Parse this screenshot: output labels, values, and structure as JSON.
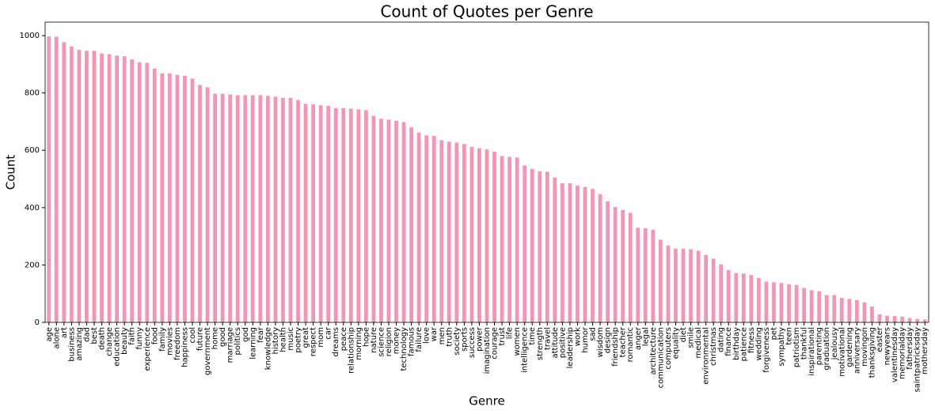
{
  "chart_data": {
    "type": "bar",
    "title": "Count of Quotes per Genre",
    "x_label": "Genre",
    "y_label": "Count",
    "categories": [
      "age",
      "alone",
      "art",
      "business",
      "amazing",
      "dad",
      "best",
      "death",
      "change",
      "education",
      "beauty",
      "faith",
      "funny",
      "experience",
      "food",
      "family",
      "movies",
      "freedom",
      "happiness",
      "cool",
      "future",
      "government",
      "home",
      "good",
      "marriage",
      "politics",
      "god",
      "learning",
      "fear",
      "knowledge",
      "history",
      "health",
      "music",
      "poetry",
      "great",
      "respect",
      "mom",
      "car",
      "dreams",
      "peace",
      "relationship",
      "morning",
      "hope",
      "nature",
      "science",
      "religion",
      "money",
      "technology",
      "famous",
      "failure",
      "love",
      "war",
      "men",
      "truth",
      "society",
      "sports",
      "success",
      "power",
      "imagination",
      "courage",
      "trust",
      "life",
      "women",
      "intelligence",
      "time",
      "strength",
      "travel",
      "attitude",
      "positive",
      "leadership",
      "work",
      "humor",
      "sad",
      "wisdom",
      "design",
      "friendship",
      "teacher",
      "romantic",
      "anger",
      "legal",
      "architecture",
      "communication",
      "computers",
      "equality",
      "diet",
      "smile",
      "medical",
      "environmental",
      "christmas",
      "dating",
      "finance",
      "birthday",
      "patience",
      "fitness",
      "wedding",
      "forgiveness",
      "pet",
      "sympathy",
      "teen",
      "patriotism",
      "thankful",
      "inspirational",
      "parenting",
      "graduation",
      "jealousy",
      "motivational",
      "gardening",
      "anniversary",
      "movingon",
      "thanksgiving",
      "easter",
      "newyears",
      "valentinesday",
      "memorialday",
      "fathersday",
      "saintpatricksday",
      "mothersday"
    ],
    "values": [
      997,
      996,
      977,
      962,
      950,
      947,
      947,
      938,
      935,
      930,
      928,
      917,
      907,
      905,
      885,
      868,
      868,
      863,
      860,
      850,
      828,
      820,
      797,
      797,
      795,
      792,
      792,
      792,
      792,
      790,
      787,
      783,
      783,
      775,
      762,
      760,
      757,
      755,
      747,
      747,
      745,
      743,
      740,
      720,
      710,
      707,
      703,
      698,
      680,
      662,
      652,
      650,
      635,
      630,
      627,
      622,
      612,
      607,
      603,
      595,
      580,
      577,
      575,
      547,
      535,
      527,
      525,
      505,
      485,
      485,
      477,
      472,
      465,
      447,
      422,
      402,
      392,
      382,
      330,
      328,
      323,
      288,
      268,
      257,
      257,
      255,
      250,
      235,
      222,
      202,
      182,
      172,
      170,
      165,
      155,
      142,
      140,
      137,
      133,
      130,
      120,
      112,
      108,
      95,
      95,
      85,
      82,
      78,
      70,
      55,
      28,
      23,
      22,
      20,
      15,
      12,
      10
    ],
    "color": "#f794b4",
    "ylim": [
      0,
      1047
    ],
    "yticks": [
      0,
      200,
      400,
      600,
      800,
      1000
    ],
    "grid": false
  }
}
